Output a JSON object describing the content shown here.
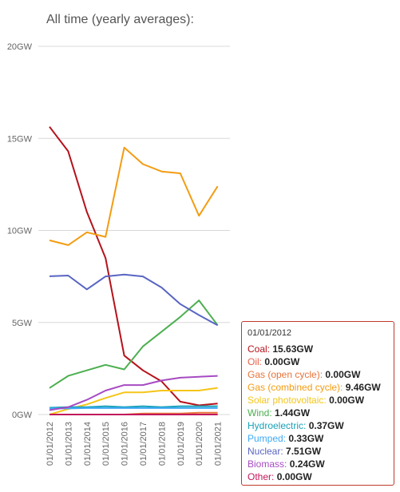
{
  "page_title": "All time (yearly averages):",
  "chart_data": {
    "type": "line",
    "x": [
      "01/01/2012",
      "01/01/2013",
      "01/01/2014",
      "01/01/2015",
      "01/01/2016",
      "01/01/2017",
      "01/01/2018",
      "01/01/2019",
      "01/01/2020",
      "01/01/2021"
    ],
    "y_ticks": [
      "0GW",
      "5GW",
      "10GW",
      "15GW",
      "20GW"
    ],
    "ylim": [
      0,
      20
    ],
    "grid": true,
    "series": [
      {
        "name": "Coal",
        "color": "#b5121b",
        "values": [
          15.63,
          14.3,
          11.0,
          8.5,
          3.2,
          2.4,
          1.8,
          0.7,
          0.5,
          0.6
        ]
      },
      {
        "name": "Oil",
        "color": "#e8604c",
        "values": [
          0.0,
          0.0,
          0.0,
          0.0,
          0.0,
          0.0,
          0.0,
          0.0,
          0.0,
          0.0
        ]
      },
      {
        "name": "Gas (open cycle)",
        "color": "#e8733a",
        "values": [
          0.0,
          0.0,
          0.0,
          0.0,
          0.0,
          0.05,
          0.05,
          0.05,
          0.1,
          0.1
        ]
      },
      {
        "name": "Gas (combined cycle)",
        "color": "#f39c12",
        "values": [
          9.46,
          9.2,
          9.9,
          9.65,
          14.5,
          13.6,
          13.2,
          13.1,
          10.8,
          12.4
        ]
      },
      {
        "name": "Solar photovoltaic",
        "color": "#f5c518",
        "values": [
          0.0,
          0.3,
          0.55,
          0.9,
          1.2,
          1.2,
          1.3,
          1.3,
          1.3,
          1.45
        ]
      },
      {
        "name": "Wind",
        "color": "#4caf50",
        "values": [
          1.44,
          2.1,
          2.4,
          2.7,
          2.45,
          3.7,
          4.5,
          5.3,
          6.2,
          4.85
        ]
      },
      {
        "name": "Hydroelectric",
        "color": "#17a2b8",
        "values": [
          0.37,
          0.4,
          0.4,
          0.45,
          0.4,
          0.45,
          0.4,
          0.45,
          0.45,
          0.45
        ]
      },
      {
        "name": "Pumped",
        "color": "#3fa9f5",
        "values": [
          0.33,
          0.33,
          0.35,
          0.35,
          0.35,
          0.35,
          0.35,
          0.35,
          0.35,
          0.35
        ]
      },
      {
        "name": "Nuclear",
        "color": "#5865c2",
        "values": [
          7.51,
          7.55,
          6.8,
          7.5,
          7.6,
          7.5,
          6.9,
          6.0,
          5.4,
          4.85
        ]
      },
      {
        "name": "Biomass",
        "color": "#a74bc2",
        "values": [
          0.24,
          0.4,
          0.8,
          1.3,
          1.6,
          1.6,
          1.85,
          2.0,
          2.05,
          2.1
        ]
      },
      {
        "name": "Other",
        "color": "#c2185b",
        "values": [
          0.0,
          0.0,
          0.0,
          0.0,
          0.0,
          0.0,
          0.0,
          0.0,
          0.0,
          0.0
        ]
      }
    ]
  },
  "tooltip": {
    "date": "01/01/2012",
    "rows": [
      {
        "label": "Coal:",
        "value": "15.63GW",
        "color": "#b5121b"
      },
      {
        "label": "Oil:",
        "value": "0.00GW",
        "color": "#e8604c"
      },
      {
        "label": "Gas (open cycle):",
        "value": "0.00GW",
        "color": "#e8733a"
      },
      {
        "label": "Gas (combined cycle):",
        "value": "9.46GW",
        "color": "#f39c12"
      },
      {
        "label": "Solar photovoltaic:",
        "value": "0.00GW",
        "color": "#f5c518"
      },
      {
        "label": "Wind:",
        "value": "1.44GW",
        "color": "#4caf50"
      },
      {
        "label": "Hydroelectric:",
        "value": "0.37GW",
        "color": "#17a2b8"
      },
      {
        "label": "Pumped:",
        "value": "0.33GW",
        "color": "#3fa9f5"
      },
      {
        "label": "Nuclear:",
        "value": "7.51GW",
        "color": "#5865c2"
      },
      {
        "label": "Biomass:",
        "value": "0.24GW",
        "color": "#a74bc2"
      },
      {
        "label": "Other:",
        "value": "0.00GW",
        "color": "#c2185b"
      }
    ]
  }
}
